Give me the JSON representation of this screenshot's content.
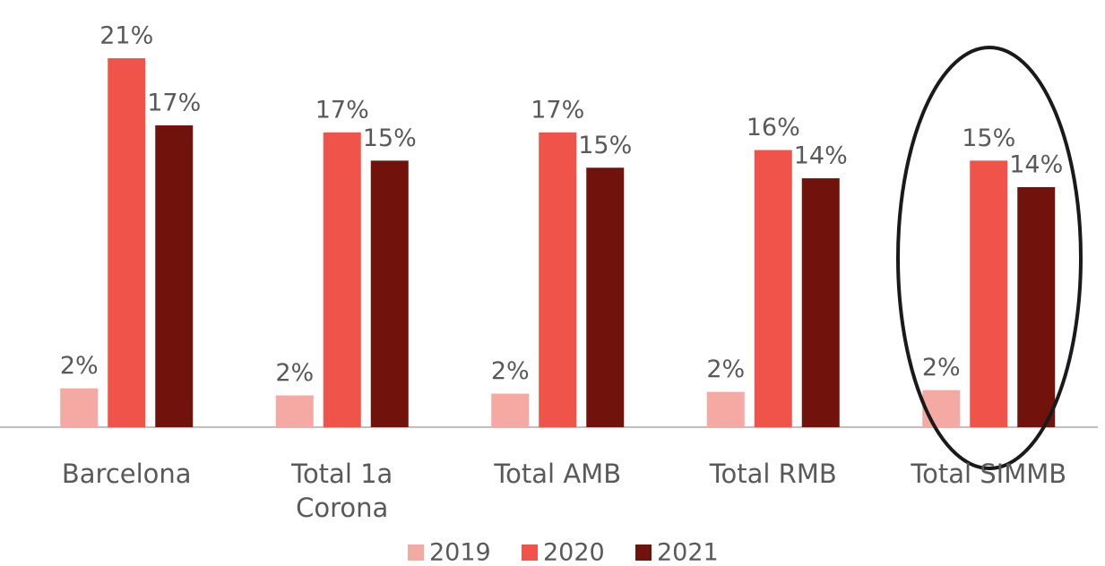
{
  "chart_data": {
    "type": "bar",
    "categories": [
      "Barcelona",
      "Total 1a Corona",
      "Total AMB",
      "Total RMB",
      "Total SIMMB"
    ],
    "series": [
      {
        "name": "2019",
        "color": "#f4a9a2",
        "values": [
          2.2,
          1.8,
          1.9,
          2.0,
          2.1
        ],
        "value_labels": [
          "2%",
          "2%",
          "2%",
          "2%",
          "2%"
        ]
      },
      {
        "name": "2020",
        "color": "#ef5349",
        "values": [
          20.9,
          16.7,
          16.7,
          15.7,
          15.1
        ],
        "value_labels": [
          "21%",
          "17%",
          "17%",
          "16%",
          "15%"
        ]
      },
      {
        "name": "2021",
        "color": "#72120c",
        "values": [
          17.1,
          15.1,
          14.7,
          14.1,
          13.6
        ],
        "value_labels": [
          "17%",
          "15%",
          "15%",
          "14%",
          "14%"
        ]
      }
    ],
    "ylim": [
      0,
      24.2
    ],
    "legend": "bottom"
  }
}
